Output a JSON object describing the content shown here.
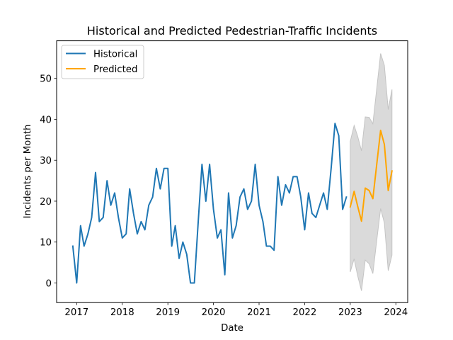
{
  "chart_data": {
    "type": "line",
    "title": "Historical and Predicted Pedestrian-Traffic Incidents",
    "xlabel": "Date",
    "ylabel": "Incidents per Month",
    "xlim": [
      2016.56,
      2024.26
    ],
    "ylim": [
      -4.8,
      59.2
    ],
    "xticks": [
      2017,
      2018,
      2019,
      2020,
      2021,
      2022,
      2023,
      2024
    ],
    "xtick_labels": [
      "2017",
      "2018",
      "2019",
      "2020",
      "2021",
      "2022",
      "2023",
      "2024"
    ],
    "yticks": [
      0,
      10,
      20,
      30,
      40,
      50
    ],
    "ytick_labels": [
      "0",
      "10",
      "20",
      "30",
      "40",
      "50"
    ],
    "grid": false,
    "legend": {
      "position": "top-left",
      "entries": [
        "Historical",
        "Predicted"
      ]
    },
    "series": [
      {
        "name": "Historical",
        "color": "#1f77b4",
        "start": "2016-12",
        "frequency": "monthly",
        "values": [
          9,
          0,
          14,
          9,
          12,
          16,
          27,
          15,
          16,
          25,
          19,
          22,
          16,
          11,
          12,
          23,
          17,
          12,
          15,
          13,
          19,
          21,
          28,
          23,
          28,
          28,
          9,
          14,
          6,
          10,
          7,
          0,
          0,
          15,
          29,
          20,
          29,
          18,
          11,
          13,
          2,
          22,
          11,
          14,
          21,
          23,
          18,
          20,
          29,
          19,
          15,
          9,
          9,
          8,
          26,
          19,
          24,
          22,
          26,
          26,
          21,
          13,
          22,
          17,
          16,
          19,
          22,
          18,
          28,
          39,
          36,
          18,
          21
        ]
      },
      {
        "name": "Predicted",
        "color": "#ffa500",
        "start": "2023-01",
        "frequency": "monthly",
        "values": [
          18.6,
          22.4,
          18.8,
          15.1,
          23.2,
          22.6,
          20.6,
          29.0,
          37.3,
          33.9,
          22.6,
          27.4
        ]
      }
    ],
    "confidence_band": {
      "color": "#d3d3d3",
      "start": "2023-01",
      "upper": [
        34.6,
        38.5,
        35.9,
        32.3,
        40.6,
        40.5,
        38.9,
        47.5,
        56.1,
        53.2,
        42.4,
        47.3
      ],
      "lower": [
        2.7,
        5.9,
        1.8,
        -1.9,
        5.6,
        4.7,
        2.3,
        10.4,
        18.2,
        14.7,
        3.0,
        6.8
      ]
    }
  }
}
